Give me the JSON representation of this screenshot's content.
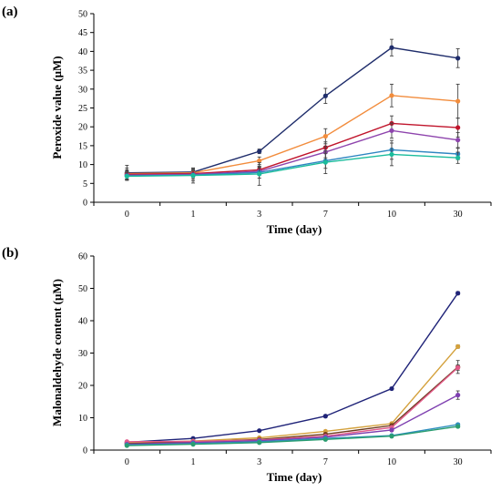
{
  "panels": [
    {
      "label": "(a)"
    },
    {
      "label": "(b)"
    }
  ],
  "chart_data": [
    {
      "type": "line",
      "xlabel": "Time (day)",
      "ylabel": "Peroxide value (μM)",
      "categories": [
        "0",
        "1",
        "3",
        "7",
        "10",
        "30"
      ],
      "ylim": [
        0,
        50
      ],
      "yticks": [
        "0",
        "5",
        "10",
        "15",
        "20",
        "25",
        "30",
        "35",
        "40",
        "45",
        "50"
      ],
      "grid": false,
      "series": [
        {
          "color": "#1f2d6b",
          "values": [
            7.8,
            8.0,
            13.5,
            28.2,
            41.0,
            38.2
          ],
          "errors": [
            2.0,
            1.0,
            0.6,
            2.0,
            2.2,
            2.5
          ]
        },
        {
          "color": "#f28c3c",
          "values": [
            7.6,
            7.8,
            11.0,
            17.5,
            28.3,
            26.8
          ],
          "errors": [
            1.5,
            1.2,
            1.0,
            2.0,
            3.0,
            4.5
          ]
        },
        {
          "color": "#c0142b",
          "values": [
            7.4,
            7.6,
            8.6,
            14.5,
            20.9,
            19.8
          ],
          "errors": [
            1.2,
            1.0,
            1.0,
            1.5,
            2.0,
            2.5
          ]
        },
        {
          "color": "#8e44ad",
          "values": [
            7.2,
            7.4,
            8.2,
            13.3,
            19.0,
            16.5
          ],
          "errors": [
            1.2,
            1.2,
            1.0,
            1.5,
            2.0,
            2.0
          ]
        },
        {
          "color": "#2e86c1",
          "values": [
            7.0,
            7.2,
            7.9,
            11.0,
            13.9,
            12.8
          ],
          "errors": [
            1.0,
            1.5,
            1.5,
            2.0,
            2.5,
            1.5
          ]
        },
        {
          "color": "#1abc9c",
          "values": [
            6.9,
            7.1,
            7.5,
            10.6,
            12.7,
            11.8
          ],
          "errors": [
            1.0,
            2.0,
            3.0,
            3.0,
            3.0,
            1.5
          ]
        }
      ]
    },
    {
      "type": "line",
      "xlabel": "Time (day)",
      "ylabel": "Malonaldehyde content (μM)",
      "categories": [
        "0",
        "1",
        "3",
        "7",
        "10",
        "30"
      ],
      "ylim": [
        0,
        60
      ],
      "yticks": [
        "0",
        "10",
        "20",
        "30",
        "40",
        "50",
        "60"
      ],
      "grid": false,
      "series": [
        {
          "color": "#1f2378",
          "values": [
            2.4,
            3.6,
            6.0,
            10.5,
            19.0,
            48.5
          ],
          "errors": [
            0.3,
            0.3,
            0.3,
            0.4,
            0.4,
            0.5
          ]
        },
        {
          "color": "#d4a13c",
          "values": [
            2.2,
            2.8,
            3.8,
            5.8,
            8.2,
            32.0
          ],
          "errors": [
            0.3,
            0.3,
            0.3,
            0.3,
            0.4,
            0.5
          ]
        },
        {
          "color": "#6e3b1e",
          "values": [
            2.0,
            2.5,
            3.3,
            4.9,
            7.6,
            25.7
          ],
          "errors": [
            0.3,
            0.3,
            0.3,
            0.3,
            0.5,
            2.0
          ]
        },
        {
          "color": "#e25a8a",
          "values": [
            2.6,
            2.7,
            3.1,
            4.3,
            7.0,
            25.5
          ],
          "errors": [
            0.2,
            0.2,
            0.3,
            0.3,
            0.4,
            0.8
          ]
        },
        {
          "color": "#7e3fb0",
          "values": [
            1.8,
            2.3,
            2.9,
            4.0,
            6.2,
            17.0
          ],
          "errors": [
            0.2,
            0.2,
            0.3,
            0.3,
            0.4,
            1.3
          ]
        },
        {
          "color": "#2f8fbf",
          "values": [
            1.6,
            2.0,
            2.6,
            3.6,
            4.5,
            7.9
          ],
          "errors": [
            0.2,
            0.2,
            0.2,
            0.3,
            0.3,
            0.4
          ]
        },
        {
          "color": "#2a9d70",
          "values": [
            1.4,
            1.8,
            2.3,
            3.3,
            4.3,
            7.3
          ],
          "errors": [
            0.2,
            0.2,
            0.2,
            0.3,
            0.3,
            0.4
          ]
        }
      ]
    }
  ]
}
